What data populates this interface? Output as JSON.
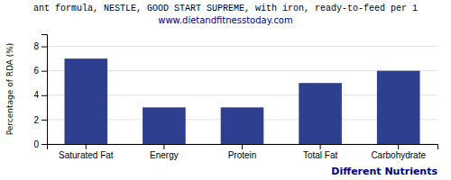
{
  "chart_data": {
    "type": "bar",
    "title": "ant formula, NESTLE, GOOD START SUPREME, with iron, ready-to-feed per 1",
    "subtitle": "www.dietandfitnesstoday.com",
    "x_label": "Different Nutrients",
    "y_label": "Percentage of RDA (%)",
    "categories": [
      "Saturated Fat",
      "Energy",
      "Protein",
      "Total Fat",
      "Carbohydrate"
    ],
    "values": [
      7.0,
      3.0,
      3.0,
      5.0,
      6.0
    ],
    "color": "#2e3f8f",
    "ylim": [
      0,
      9
    ],
    "yticks": [
      0,
      2,
      4,
      6,
      8
    ],
    "grid": true
  }
}
